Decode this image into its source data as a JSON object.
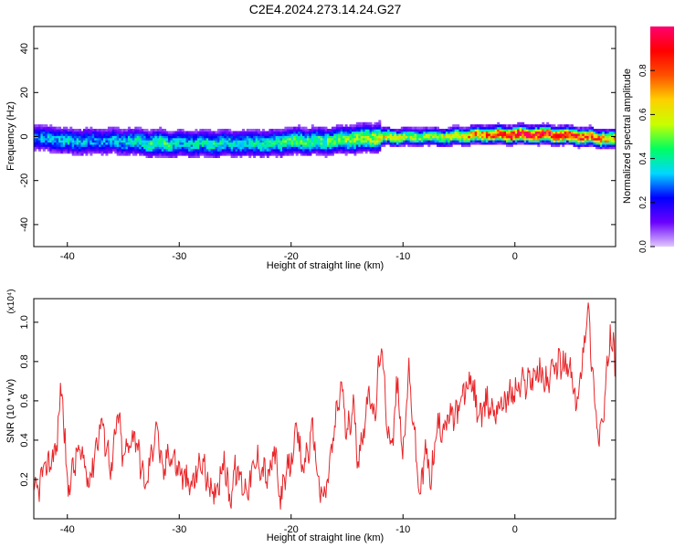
{
  "title": "C2E4.2024.273.14.24.G27",
  "colors": {
    "trace": "#e8262a",
    "axis": "#000000",
    "background": "#ffffff"
  },
  "chart_data": [
    {
      "type": "heatmap",
      "xlabel": "Height of straight line (km)",
      "ylabel": "Frequency (Hz)",
      "xlim": [
        -43,
        9
      ],
      "ylim": [
        -50,
        50
      ],
      "xticks": [
        -40,
        -30,
        -20,
        -10,
        0
      ],
      "yticks": [
        -40,
        -20,
        0,
        20,
        40
      ],
      "colorbar": {
        "label": "Normalized spectral amplitude",
        "range": [
          0.0,
          1.0
        ],
        "ticks": [
          "0.0",
          "0.2",
          "0.4",
          "0.6",
          "0.8"
        ],
        "colormap": [
          "#e0c8ff",
          "#6a00ff",
          "#0000ff",
          "#00d8ff",
          "#00ff60",
          "#c8ff00",
          "#ffd000",
          "#ff5000",
          "#ff0000",
          "#ff0070"
        ]
      },
      "ridge": {
        "x": [
          -43,
          -40,
          -37,
          -35,
          -32,
          -30,
          -27,
          -25,
          -22,
          -20,
          -17,
          -15,
          -12,
          -10,
          -8,
          -6,
          -3,
          0,
          3,
          6,
          9
        ],
        "freq": [
          0,
          -2,
          -2,
          -2,
          -3,
          -3,
          -3,
          -3,
          -3,
          -2,
          -2,
          -1,
          0,
          0,
          0,
          0,
          1,
          1,
          1,
          0,
          -1
        ],
        "amplitude": [
          0.3,
          0.35,
          0.3,
          0.35,
          0.45,
          0.35,
          0.4,
          0.35,
          0.4,
          0.45,
          0.45,
          0.5,
          0.6,
          0.55,
          0.5,
          0.6,
          0.75,
          0.95,
          0.95,
          0.85,
          0.7
        ]
      }
    },
    {
      "type": "line",
      "xlabel": "Height of straight line (km)",
      "ylabel": "SNR (10 * v/v)",
      "yscale_label": "(x10⁴)",
      "xlim": [
        -43,
        9
      ],
      "ylim": [
        0,
        1.12
      ],
      "xticks": [
        -40,
        -30,
        -20,
        -10,
        0
      ],
      "yticks": [
        "0.2",
        "0.4",
        "0.6",
        "0.8",
        "1.0"
      ],
      "series": [
        {
          "x": [
            -43,
            -42,
            -41,
            -40.5,
            -40,
            -39,
            -38,
            -37,
            -36,
            -35.5,
            -35,
            -34,
            -33,
            -32,
            -31.5,
            -31,
            -30,
            -29,
            -28,
            -27,
            -26,
            -25.5,
            -25,
            -24,
            -23,
            -22,
            -21.5,
            -21,
            -20,
            -19.5,
            -19,
            -18,
            -17.5,
            -17,
            -16,
            -15.5,
            -15,
            -14.5,
            -14,
            -13,
            -12.5,
            -12,
            -11.5,
            -11,
            -10.5,
            -10,
            -9.5,
            -9,
            -8.5,
            -8,
            -7.5,
            -7,
            -6,
            -5,
            -4.5,
            -4,
            -3,
            -2.5,
            -2,
            -1,
            0,
            1,
            2,
            3,
            4,
            5,
            5.5,
            6,
            6.5,
            7,
            7.5,
            8,
            8.5,
            9
          ],
          "y": [
            0.1,
            0.25,
            0.35,
            0.7,
            0.15,
            0.35,
            0.2,
            0.5,
            0.25,
            0.55,
            0.3,
            0.45,
            0.15,
            0.5,
            0.2,
            0.35,
            0.25,
            0.15,
            0.3,
            0.1,
            0.3,
            0.1,
            0.25,
            0.15,
            0.3,
            0.2,
            0.35,
            0.1,
            0.3,
            0.45,
            0.25,
            0.45,
            0.15,
            0.1,
            0.5,
            0.7,
            0.4,
            0.6,
            0.3,
            0.65,
            0.5,
            0.9,
            0.55,
            0.35,
            0.7,
            0.3,
            0.75,
            0.45,
            0.1,
            0.35,
            0.2,
            0.45,
            0.5,
            0.55,
            0.65,
            0.7,
            0.5,
            0.6,
            0.55,
            0.6,
            0.65,
            0.7,
            0.75,
            0.7,
            0.8,
            0.75,
            0.55,
            0.8,
            1.1,
            0.7,
            0.4,
            0.55,
            0.95,
            0.8
          ]
        }
      ]
    }
  ]
}
